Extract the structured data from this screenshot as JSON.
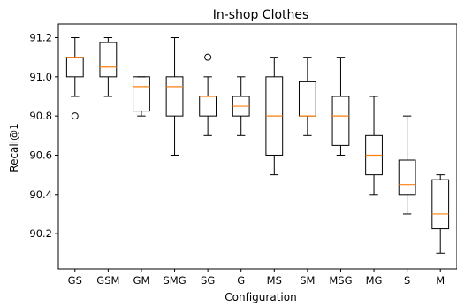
{
  "chart_data": {
    "type": "box",
    "title": "In-shop Clothes",
    "xlabel": "Configuration",
    "ylabel": "Recall@1",
    "ylim": [
      90.02,
      91.27
    ],
    "yticks": [
      90.2,
      90.4,
      90.6,
      90.8,
      91.0,
      91.2
    ],
    "ytick_labels": [
      "90.2",
      "90.4",
      "90.6",
      "90.8",
      "91.0",
      "91.2"
    ],
    "grid": false,
    "colors": {
      "box": "#000000",
      "median": "#ff7f0e",
      "background": "#ffffff"
    },
    "categories": [
      "GS",
      "GSM",
      "GM",
      "SMG",
      "SG",
      "G",
      "MS",
      "SM",
      "MSG",
      "MG",
      "S",
      "M"
    ],
    "boxes": [
      {
        "label": "GS",
        "whislo": 90.9,
        "q1": 91.0,
        "med": 91.1,
        "q3": 91.1,
        "whishi": 91.2,
        "fliers": [
          90.8
        ]
      },
      {
        "label": "GSM",
        "whislo": 90.9,
        "q1": 91.0,
        "med": 91.05,
        "q3": 91.175,
        "whishi": 91.2,
        "fliers": []
      },
      {
        "label": "GM",
        "whislo": 90.8,
        "q1": 90.825,
        "med": 90.95,
        "q3": 91.0,
        "whishi": 91.0,
        "fliers": []
      },
      {
        "label": "SMG",
        "whislo": 90.6,
        "q1": 90.8,
        "med": 90.95,
        "q3": 91.0,
        "whishi": 91.2,
        "fliers": []
      },
      {
        "label": "SG",
        "whislo": 90.7,
        "q1": 90.8,
        "med": 90.9,
        "q3": 90.9,
        "whishi": 91.0,
        "fliers": [
          91.1
        ]
      },
      {
        "label": "G",
        "whislo": 90.7,
        "q1": 90.8,
        "med": 90.85,
        "q3": 90.9,
        "whishi": 91.0,
        "fliers": []
      },
      {
        "label": "MS",
        "whislo": 90.5,
        "q1": 90.6,
        "med": 90.8,
        "q3": 91.0,
        "whishi": 91.1,
        "fliers": []
      },
      {
        "label": "SM",
        "whislo": 90.7,
        "q1": 90.8,
        "med": 90.8,
        "q3": 90.975,
        "whishi": 91.1,
        "fliers": []
      },
      {
        "label": "MSG",
        "whislo": 90.6,
        "q1": 90.65,
        "med": 90.8,
        "q3": 90.9,
        "whishi": 91.1,
        "fliers": []
      },
      {
        "label": "MG",
        "whislo": 90.4,
        "q1": 90.5,
        "med": 90.6,
        "q3": 90.7,
        "whishi": 90.9,
        "fliers": []
      },
      {
        "label": "S",
        "whislo": 90.3,
        "q1": 90.4,
        "med": 90.45,
        "q3": 90.575,
        "whishi": 90.8,
        "fliers": []
      },
      {
        "label": "M",
        "whislo": 90.1,
        "q1": 90.225,
        "med": 90.3,
        "q3": 90.475,
        "whishi": 90.5,
        "fliers": []
      }
    ]
  }
}
